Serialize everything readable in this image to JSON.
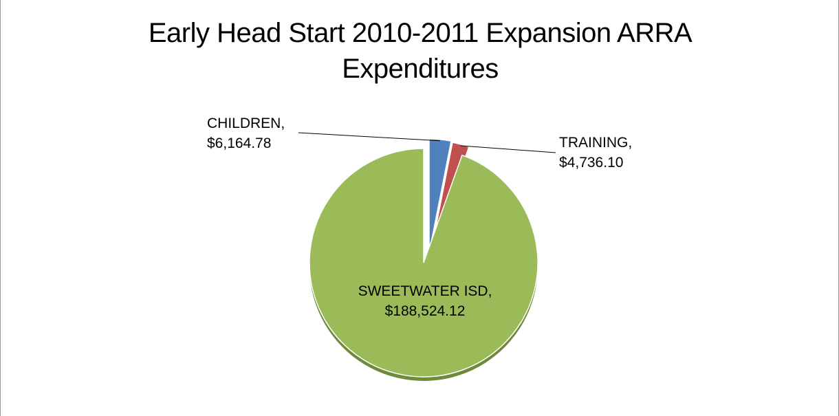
{
  "chart_data": {
    "type": "pie",
    "title": "Early Head Start 2010-2011  Expansion ARRA Expenditures",
    "categories": [
      "CHILDREN,",
      "TRAINING,",
      "SWEETWATER ISD,"
    ],
    "values": [
      6164.78,
      4736.1,
      188524.12
    ],
    "value_labels": [
      "$6,164.78",
      "$4,736.10",
      "$188,524.12"
    ],
    "colors": [
      "#4f81bd",
      "#c0504d",
      "#9bbb59"
    ]
  }
}
